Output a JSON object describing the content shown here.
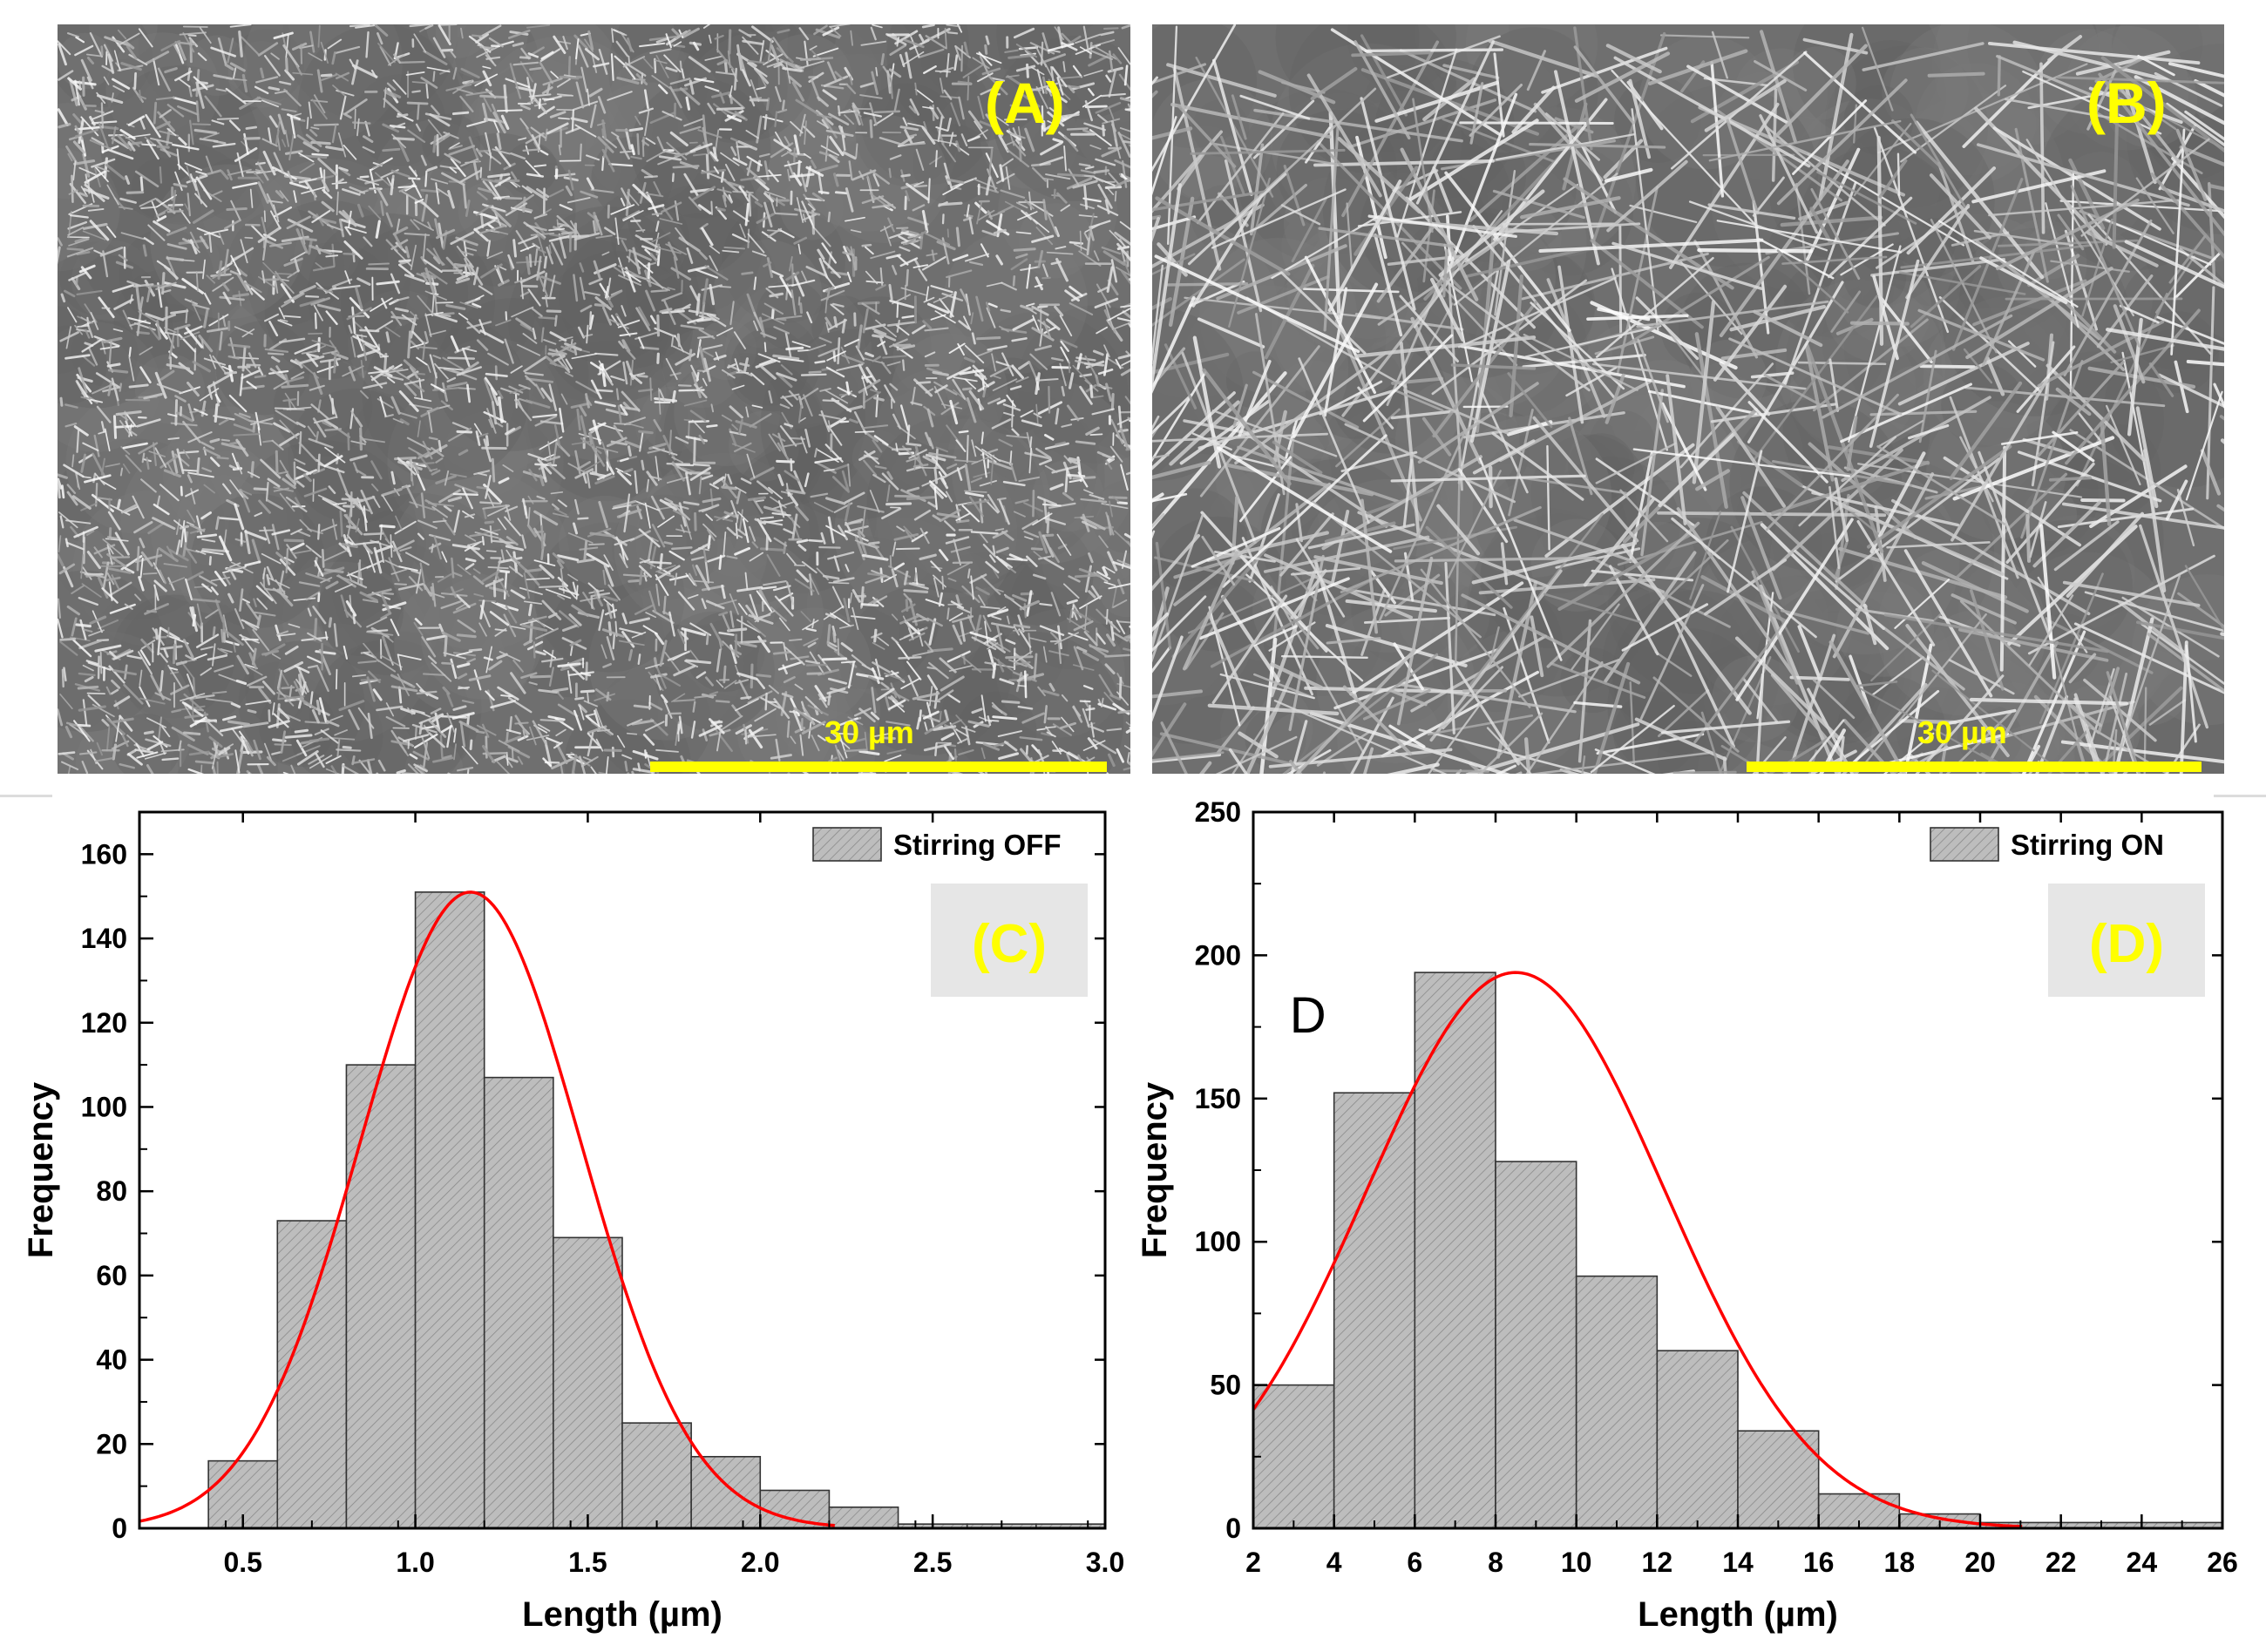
{
  "micrographs": [
    {
      "panel_label": "(A)",
      "scale_bar_label": "30 µm"
    },
    {
      "panel_label": "(B)",
      "scale_bar_label": "30 µm"
    }
  ],
  "colors": {
    "annotation": "#ffff00",
    "bar_fill": "#bdbdbd",
    "fit_line": "#ff0000",
    "label_box": "#e6e6e6"
  },
  "chart_data": [
    {
      "type": "bar",
      "panel_label": "(C)",
      "legend": [
        "Stirring OFF"
      ],
      "legend_position": "top-right",
      "xlabel": "Length (µm)",
      "ylabel": "Frequency",
      "xlim": [
        0.2,
        3.0
      ],
      "ylim": [
        0,
        170
      ],
      "xticks": [
        "0.5",
        "1.0",
        "1.5",
        "2.0",
        "2.5",
        "3.0"
      ],
      "yticks": [
        "0",
        "20",
        "40",
        "60",
        "80",
        "100",
        "120",
        "140",
        "160"
      ],
      "bin_edges": [
        0.4,
        0.6,
        0.8,
        1.0,
        1.2,
        1.4,
        1.6,
        1.8,
        2.0,
        2.2,
        2.4,
        2.6,
        2.8,
        3.0
      ],
      "values": [
        16,
        73,
        110,
        151,
        107,
        69,
        25,
        17,
        9,
        5,
        1,
        1,
        1
      ],
      "fit": {
        "type": "gaussian",
        "center": 1.16,
        "sigma": 0.32,
        "peak": 151
      },
      "grid": false
    },
    {
      "type": "bar",
      "panel_label": "(D)",
      "annotation": "D",
      "legend": [
        "Stirring ON"
      ],
      "legend_position": "top-right",
      "xlabel": "Length (µm)",
      "ylabel": "Frequency",
      "xlim": [
        2,
        26
      ],
      "ylim": [
        0,
        250
      ],
      "xticks": [
        "2",
        "4",
        "6",
        "8",
        "10",
        "12",
        "14",
        "16",
        "18",
        "20",
        "22",
        "24",
        "26"
      ],
      "yticks": [
        "0",
        "50",
        "100",
        "150",
        "200",
        "250"
      ],
      "bin_edges": [
        2,
        4,
        6,
        8,
        10,
        12,
        14,
        16,
        18,
        20,
        22,
        24,
        26
      ],
      "values": [
        50,
        152,
        194,
        128,
        88,
        62,
        34,
        12,
        5,
        2,
        2,
        2
      ],
      "fit": {
        "type": "gaussian",
        "center": 8.5,
        "sigma": 3.7,
        "peak": 194
      },
      "grid": false
    }
  ]
}
